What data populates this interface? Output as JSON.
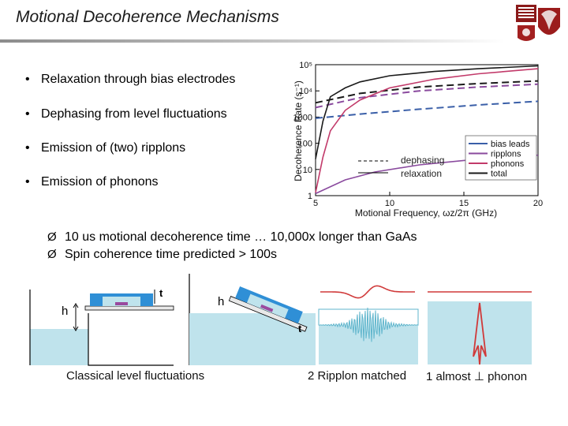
{
  "slide": {
    "title": "Motional Decoherence Mechanisms",
    "bullets": [
      "Relaxation through bias electrodes",
      "Dephasing from level fluctuations",
      "Emission of (two) ripplons",
      "Emission of phonons"
    ],
    "arrow_points": [
      "10 us motional decoherence time … 10,000x longer than GaAs",
      "Spin coherence time predicted > 100s"
    ],
    "bullet_glyph": "•",
    "arrow_glyph": "Ø",
    "captions": {
      "classical": "Classical level fluctuations",
      "ripplon": "2 Ripplon matched",
      "phonon": "1 almost ⊥ phonon"
    },
    "diagram_labels": {
      "h_left": "h",
      "t_left": "t",
      "h_right": "h",
      "t_right": "t"
    }
  },
  "chart_data": {
    "type": "line",
    "xlabel": "Motional Frequency, ωz/2π (GHz)",
    "ylabel": "Decoherence Rate (s⁻¹)",
    "xlim": [
      5,
      20
    ],
    "ylim": [
      1,
      100000
    ],
    "y_scale": "log",
    "x_ticks": [
      "5",
      "10",
      "15",
      "20"
    ],
    "y_ticks": [
      "1",
      "10",
      "100",
      "1000",
      "10⁴",
      "10⁵"
    ],
    "line_style_legend": [
      "dephasing",
      "relaxation"
    ],
    "legend": {
      "placement": "bottom-right",
      "entries": [
        {
          "name": "bias leads",
          "color": "#3a5fa8"
        },
        {
          "name": "ripplons",
          "color": "#8a4a9e"
        },
        {
          "name": "phonons",
          "color": "#c23a6a"
        },
        {
          "name": "total",
          "color": "#1a1a1a"
        }
      ]
    },
    "series": [
      {
        "name": "bias leads",
        "style": "dashed",
        "color": "#3a5fa8",
        "x": [
          5,
          8,
          12,
          16,
          20
        ],
        "y": [
          900,
          1300,
          2000,
          2900,
          4000
        ]
      },
      {
        "name": "total",
        "style": "dashed",
        "color": "#1a1a1a",
        "x": [
          5,
          8,
          12,
          16,
          20
        ],
        "y": [
          3500,
          8000,
          14000,
          19000,
          24000
        ]
      },
      {
        "name": "ripplons",
        "style": "dashed",
        "color": "#8a4a9e",
        "x": [
          5,
          8,
          12,
          16,
          20
        ],
        "y": [
          2300,
          5500,
          10000,
          14000,
          18000
        ]
      },
      {
        "name": "total",
        "style": "solid",
        "color": "#1a1a1a",
        "x": [
          5,
          5.5,
          6,
          7,
          8,
          10,
          13,
          16,
          20
        ],
        "y": [
          25,
          700,
          6000,
          13000,
          22000,
          38000,
          55000,
          70000,
          90000
        ]
      },
      {
        "name": "phonons",
        "style": "solid",
        "color": "#c23a6a",
        "x": [
          5,
          5.5,
          6,
          7,
          8,
          10,
          13,
          16,
          20
        ],
        "y": [
          1.3,
          30,
          300,
          1800,
          4500,
          13000,
          28000,
          45000,
          70000
        ]
      },
      {
        "name": "ripplons",
        "style": "solid",
        "color": "#8a4a9e",
        "x": [
          5,
          7,
          9,
          12,
          15,
          20
        ],
        "y": [
          1.2,
          4,
          8,
          15,
          22,
          35
        ]
      }
    ]
  }
}
